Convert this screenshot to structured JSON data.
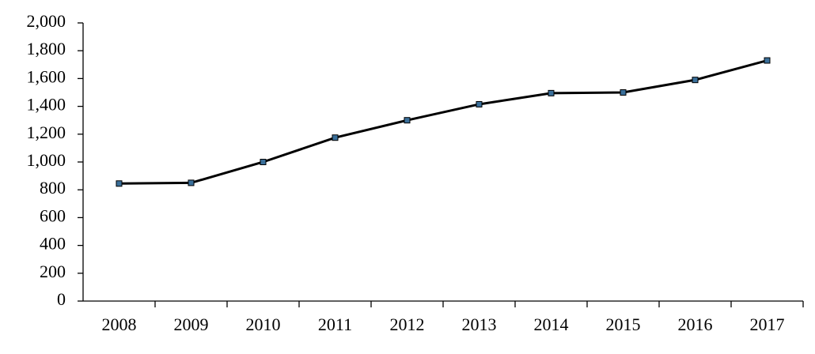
{
  "chart_data": {
    "type": "line",
    "categories": [
      "2008",
      "2009",
      "2010",
      "2011",
      "2012",
      "2013",
      "2014",
      "2015",
      "2016",
      "2017"
    ],
    "values": [
      845,
      850,
      1000,
      1175,
      1300,
      1415,
      1495,
      1500,
      1590,
      1730
    ],
    "color": "#000000",
    "marker_color": "#3a6f9a",
    "ylim": [
      0,
      2000
    ],
    "yticks": [
      0,
      200,
      400,
      600,
      800,
      {
        "value": 1000,
        "label": "1,000"
      },
      {
        "value": 1200,
        "label": "1,200"
      },
      {
        "value": 1400,
        "label": "1,400"
      },
      {
        "value": 1600,
        "label": "1,600"
      },
      {
        "value": 1800,
        "label": "1,800"
      },
      {
        "value": 2000,
        "label": "2,000"
      }
    ],
    "grid": false
  }
}
